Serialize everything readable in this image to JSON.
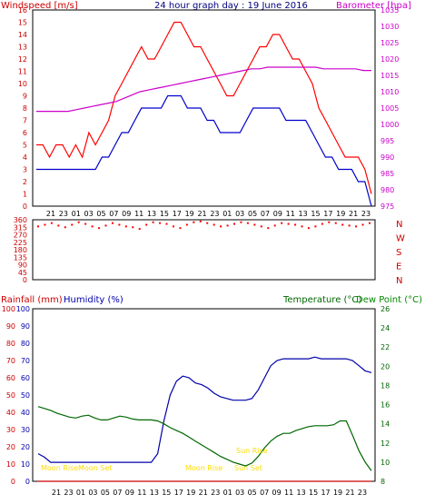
{
  "colors": {
    "windspeed": "#ff0000",
    "gust": "#ff0000",
    "avg": "#0000cc",
    "barometer": "#cc00cc",
    "rain": "#cc0000",
    "humidity": "#0000aa",
    "temperature": "#006600",
    "dewpoint": "#008800",
    "sun": "#ffdd00",
    "frame": "#000000"
  },
  "header": {
    "windspeed_label": "Windspeed [m/s]",
    "title": "24 hour graph day : 19 June 2016",
    "barometer_label": "Barometer [hpa]"
  },
  "middle": {
    "rainfall_label": "Rainfall (mm)",
    "humidity_label": "Humidity (%)",
    "temperature_label": "Temperature (°C)",
    "dewpoint_label": "Dew Point (°C)"
  },
  "annotations": {
    "moon_rise_1": "Moon Rise",
    "moon_set": "Moon Set",
    "sun_rise": "Sun Rise",
    "moon_rise_2": "Moon Rise",
    "sun_set": "Sun Set"
  },
  "chart_data": [
    {
      "type": "line",
      "panel": "wind",
      "x_ticks": [
        "21",
        "23",
        "01",
        "03",
        "05",
        "07",
        "09",
        "11",
        "13",
        "15",
        "17",
        "19",
        "21",
        "23",
        "01",
        "03",
        "05",
        "07",
        "09",
        "11",
        "13",
        "15",
        "17",
        "19",
        "21",
        "23"
      ],
      "ylim_left": [
        0,
        16
      ],
      "yticks_left": [
        0,
        1,
        2,
        3,
        4,
        5,
        6,
        7,
        8,
        9,
        10,
        11,
        12,
        13,
        14,
        15,
        16
      ],
      "ylim_right": [
        975,
        1035
      ],
      "yticks_right": [
        975,
        980,
        985,
        990,
        995,
        1000,
        1005,
        1010,
        1015,
        1020,
        1025,
        1030,
        1035
      ],
      "series": [
        {
          "name": "Windspeed",
          "axis": "left",
          "values": [
            5,
            5,
            4,
            5,
            5,
            4,
            5,
            4,
            6,
            5,
            6,
            7,
            9,
            10,
            11,
            12,
            13,
            12,
            12,
            13,
            14,
            15,
            15,
            14,
            13,
            13,
            12,
            11,
            10,
            9,
            9,
            10,
            11,
            12,
            13,
            13,
            14,
            14,
            13,
            12,
            12,
            11,
            10,
            8,
            7,
            6,
            5,
            4,
            4,
            4,
            3,
            1
          ]
        },
        {
          "name": "Average",
          "axis": "left",
          "values": [
            3,
            3,
            3,
            3,
            3,
            3,
            3,
            3,
            3,
            3,
            4,
            4,
            5,
            6,
            6,
            7,
            8,
            8,
            8,
            8,
            9,
            9,
            9,
            8,
            8,
            8,
            7,
            7,
            6,
            6,
            6,
            6,
            7,
            8,
            8,
            8,
            8,
            8,
            7,
            7,
            7,
            7,
            6,
            5,
            4,
            4,
            3,
            3,
            3,
            2,
            2,
            0
          ]
        },
        {
          "name": "Barometer",
          "axis": "right",
          "values": [
            1004,
            1004,
            1004,
            1004,
            1004,
            1004.5,
            1005,
            1005.5,
            1006,
            1006.5,
            1007,
            1008,
            1009,
            1010,
            1010.5,
            1011,
            1011.5,
            1012,
            1012.5,
            1013,
            1013.5,
            1014,
            1014.5,
            1015,
            1015.5,
            1016,
            1016.5,
            1017,
            1017,
            1017.5,
            1017.5,
            1017.5,
            1017.5,
            1017.5,
            1017.5,
            1017.5,
            1017,
            1017,
            1017,
            1017,
            1017,
            1016.5,
            1016.5
          ]
        }
      ]
    },
    {
      "type": "scatter",
      "panel": "direction",
      "ylim": [
        0,
        360
      ],
      "yticks": [
        0,
        45,
        90,
        135,
        180,
        225,
        270,
        315,
        360
      ],
      "compass_labels": [
        "N",
        "W",
        "S",
        "E",
        "N"
      ],
      "series": [
        {
          "name": "Wind direction",
          "values": [
            320,
            330,
            340,
            325,
            315,
            330,
            345,
            335,
            320,
            310,
            325,
            340,
            330,
            320,
            315,
            305,
            330,
            345,
            340,
            335,
            320,
            310,
            330,
            345,
            350,
            340,
            330,
            320,
            325,
            335,
            345,
            340,
            330,
            320,
            310,
            325,
            340,
            335,
            330,
            320,
            310,
            320,
            335,
            345,
            340,
            330,
            325,
            320,
            330,
            340
          ]
        }
      ]
    },
    {
      "type": "line",
      "panel": "climate",
      "x_ticks": [
        "21",
        "23",
        "01",
        "03",
        "05",
        "07",
        "09",
        "11",
        "13",
        "15",
        "17",
        "19",
        "21",
        "23",
        "01",
        "03",
        "05",
        "07",
        "09",
        "11",
        "13",
        "15",
        "17",
        "19",
        "21",
        "23"
      ],
      "ylim_left": [
        0,
        100
      ],
      "yticks_left": [
        0,
        10,
        20,
        30,
        40,
        50,
        60,
        70,
        80,
        90,
        100
      ],
      "yticks_rainfall": [
        0,
        10,
        20,
        30,
        40,
        50,
        60,
        70,
        80,
        90,
        100
      ],
      "ylim_right": [
        8,
        26
      ],
      "yticks_right": [
        8,
        10,
        12,
        14,
        16,
        18,
        20,
        22,
        24,
        26
      ],
      "series": [
        {
          "name": "Humidity",
          "axis": "left",
          "values": [
            16,
            14,
            11,
            11,
            11,
            11,
            11,
            11,
            11,
            11,
            11,
            11,
            11,
            11,
            11,
            11,
            11,
            11,
            11,
            16,
            35,
            50,
            58,
            61,
            60,
            57,
            56,
            54,
            51,
            49,
            48,
            47,
            47,
            47,
            48,
            53,
            60,
            67,
            70,
            71,
            71,
            71,
            71,
            71,
            72,
            71,
            71,
            71,
            71,
            71,
            70,
            67,
            64,
            63
          ]
        },
        {
          "name": "Temperature",
          "axis": "right",
          "values": [
            15.8,
            15.6,
            15.4,
            15.1,
            14.9,
            14.7,
            14.6,
            14.8,
            14.9,
            14.6,
            14.4,
            14.4,
            14.6,
            14.8,
            14.7,
            14.5,
            14.4,
            14.4,
            14.4,
            14.3,
            14.0,
            13.6,
            13.3,
            13.0,
            12.6,
            12.2,
            11.8,
            11.4,
            11.0,
            10.6,
            10.3,
            10.0,
            9.8,
            9.6,
            9.9,
            10.6,
            11.5,
            12.2,
            12.7,
            13.0,
            13.0,
            13.3,
            13.5,
            13.7,
            13.8,
            13.8,
            13.8,
            13.9,
            14.3,
            14.3,
            12.8,
            11.2,
            10.0,
            9.1
          ]
        },
        {
          "name": "Rainfall",
          "axis": "left",
          "values": [
            0,
            0,
            0,
            0,
            0,
            0,
            0,
            0,
            0,
            0,
            0,
            0,
            0,
            0,
            0,
            0,
            0,
            0,
            0,
            0,
            0,
            0,
            0,
            0,
            0,
            0,
            0,
            0,
            0,
            0,
            0,
            0,
            0,
            0,
            0,
            0,
            0,
            0,
            0,
            0,
            0,
            0,
            0,
            0,
            0,
            0,
            0,
            0,
            0,
            0,
            0,
            0,
            0,
            0
          ]
        }
      ]
    }
  ]
}
